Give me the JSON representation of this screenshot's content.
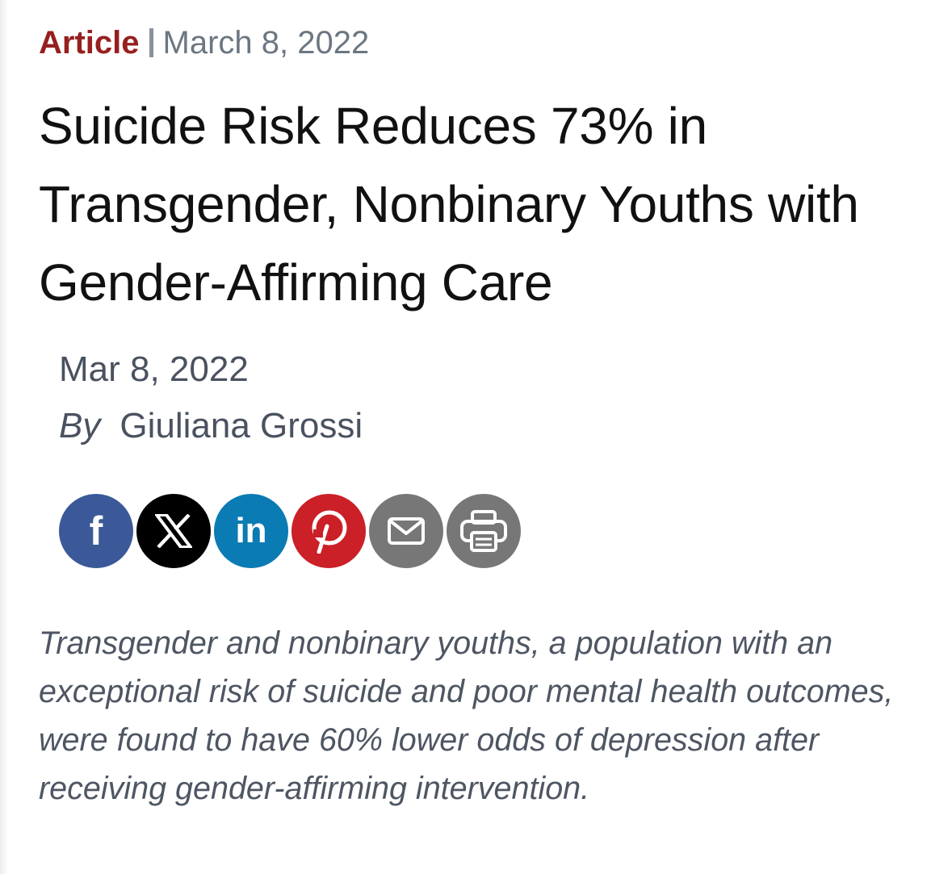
{
  "article_meta": {
    "category": "Article",
    "date": "March 8, 2022"
  },
  "headline": "Suicide Risk Reduces 73% in Transgender, Nonbinary Youths with Gender-Affirming Care",
  "byline": {
    "date": "Mar 8, 2022",
    "by_label": "By",
    "author": "Giuliana Grossi"
  },
  "share": {
    "buttons": [
      {
        "name": "facebook",
        "icon": "facebook-icon",
        "color": "#3b5998",
        "glyph": "f"
      },
      {
        "name": "x",
        "icon": "x-icon",
        "color": "#000000"
      },
      {
        "name": "linkedin",
        "icon": "linkedin-icon",
        "color": "#0a7bb3",
        "glyph": "in"
      },
      {
        "name": "pinterest",
        "icon": "pinterest-icon",
        "color": "#cb2027"
      },
      {
        "name": "email",
        "icon": "envelope-icon",
        "color": "#777777"
      },
      {
        "name": "print",
        "icon": "printer-icon",
        "color": "#777777"
      }
    ]
  },
  "summary": "Transgender and nonbinary youths, a population with an exceptional risk of suicide and poor mental health outcomes, were found to have 60% lower odds of depression after receiving gender-affirming intervention.",
  "colors": {
    "category": "#96201f",
    "meta_gray": "#6c7682",
    "headline": "#111111",
    "summary": "#4e5663"
  }
}
